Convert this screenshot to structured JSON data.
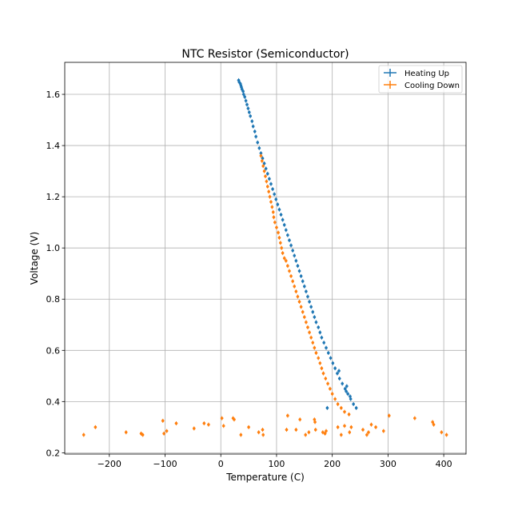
{
  "chart_data": {
    "type": "scatter",
    "title": "NTC Resistor (Semiconductor)",
    "xlabel": "Temperature (C)",
    "ylabel": "Voltage (V)",
    "xlim": [
      -280,
      440
    ],
    "ylim": [
      0.195,
      1.725
    ],
    "xticks": [
      -200,
      -100,
      0,
      100,
      200,
      300,
      400
    ],
    "xtick_labels": [
      "−200",
      "−100",
      "0",
      "100",
      "200",
      "300",
      "400"
    ],
    "yticks": [
      0.2,
      0.4,
      0.6,
      0.8,
      1.0,
      1.2,
      1.4,
      1.6
    ],
    "ytick_labels": [
      "0.2",
      "0.4",
      "0.6",
      "0.8",
      "1.0",
      "1.2",
      "1.4",
      "1.6"
    ],
    "grid": true,
    "legend": "top-right",
    "series": [
      {
        "name": "Heating Up",
        "color": "#1f77b4",
        "marker": "point-with-errorbar",
        "points": [
          [
            32,
            1.655
          ],
          [
            33,
            1.648
          ],
          [
            35,
            1.642
          ],
          [
            36,
            1.635
          ],
          [
            37,
            1.628
          ],
          [
            38,
            1.62
          ],
          [
            40,
            1.612
          ],
          [
            41,
            1.6
          ],
          [
            43,
            1.59
          ],
          [
            45,
            1.575
          ],
          [
            47,
            1.56
          ],
          [
            49,
            1.545
          ],
          [
            51,
            1.53
          ],
          [
            53,
            1.515
          ],
          [
            56,
            1.495
          ],
          [
            58,
            1.475
          ],
          [
            61,
            1.455
          ],
          [
            63,
            1.435
          ],
          [
            66,
            1.412
          ],
          [
            69,
            1.39
          ],
          [
            72,
            1.37
          ],
          [
            75,
            1.35
          ],
          [
            78,
            1.33
          ],
          [
            81,
            1.31
          ],
          [
            84,
            1.29
          ],
          [
            87,
            1.27
          ],
          [
            90,
            1.25
          ],
          [
            93,
            1.23
          ],
          [
            96,
            1.21
          ],
          [
            99,
            1.19
          ],
          [
            102,
            1.17
          ],
          [
            105,
            1.15
          ],
          [
            108,
            1.13
          ],
          [
            111,
            1.11
          ],
          [
            114,
            1.09
          ],
          [
            117,
            1.07
          ],
          [
            120,
            1.05
          ],
          [
            123,
            1.03
          ],
          [
            126,
            1.01
          ],
          [
            129,
            0.99
          ],
          [
            132,
            0.97
          ],
          [
            135,
            0.95
          ],
          [
            138,
            0.93
          ],
          [
            141,
            0.91
          ],
          [
            144,
            0.89
          ],
          [
            147,
            0.87
          ],
          [
            150,
            0.85
          ],
          [
            153,
            0.83
          ],
          [
            156,
            0.81
          ],
          [
            159,
            0.79
          ],
          [
            162,
            0.77
          ],
          [
            165,
            0.75
          ],
          [
            168,
            0.73
          ],
          [
            171,
            0.71
          ],
          [
            175,
            0.69
          ],
          [
            178,
            0.67
          ],
          [
            181,
            0.65
          ],
          [
            185,
            0.63
          ],
          [
            189,
            0.61
          ],
          [
            193,
            0.59
          ],
          [
            197,
            0.57
          ],
          [
            201,
            0.55
          ],
          [
            205,
            0.53
          ],
          [
            209,
            0.51
          ],
          [
            213,
            0.49
          ],
          [
            218,
            0.47
          ],
          [
            223,
            0.45
          ],
          [
            228,
            0.43
          ],
          [
            233,
            0.41
          ],
          [
            238,
            0.39
          ],
          [
            243,
            0.375
          ],
          [
            226,
            0.46
          ],
          [
            225,
            0.44
          ],
          [
            232,
            0.42
          ],
          [
            212,
            0.52
          ],
          [
            191,
            0.375
          ]
        ]
      },
      {
        "name": "Cooling Down",
        "color": "#ff7f0e",
        "marker": "point-with-errorbar",
        "points": [
          [
            72,
            1.36
          ],
          [
            74,
            1.34
          ],
          [
            76,
            1.32
          ],
          [
            78,
            1.3
          ],
          [
            80,
            1.28
          ],
          [
            82,
            1.26
          ],
          [
            84,
            1.24
          ],
          [
            86,
            1.22
          ],
          [
            88,
            1.2
          ],
          [
            90,
            1.18
          ],
          [
            92,
            1.16
          ],
          [
            94,
            1.14
          ],
          [
            95,
            1.12
          ],
          [
            97,
            1.1
          ],
          [
            100,
            1.08
          ],
          [
            103,
            1.06
          ],
          [
            105,
            1.04
          ],
          [
            107,
            1.02
          ],
          [
            109,
            1.0
          ],
          [
            111,
            0.98
          ],
          [
            114,
            0.96
          ],
          [
            117,
            0.95
          ],
          [
            120,
            0.93
          ],
          [
            123,
            0.91
          ],
          [
            126,
            0.89
          ],
          [
            129,
            0.87
          ],
          [
            132,
            0.85
          ],
          [
            135,
            0.83
          ],
          [
            138,
            0.81
          ],
          [
            141,
            0.79
          ],
          [
            144,
            0.77
          ],
          [
            147,
            0.75
          ],
          [
            150,
            0.73
          ],
          [
            153,
            0.71
          ],
          [
            156,
            0.69
          ],
          [
            159,
            0.67
          ],
          [
            162,
            0.65
          ],
          [
            165,
            0.63
          ],
          [
            168,
            0.61
          ],
          [
            171,
            0.59
          ],
          [
            175,
            0.57
          ],
          [
            178,
            0.55
          ],
          [
            181,
            0.53
          ],
          [
            184,
            0.51
          ],
          [
            188,
            0.49
          ],
          [
            192,
            0.47
          ],
          [
            196,
            0.45
          ],
          [
            200,
            0.43
          ],
          [
            205,
            0.41
          ],
          [
            210,
            0.39
          ],
          [
            216,
            0.375
          ],
          [
            222,
            0.36
          ],
          [
            230,
            0.35
          ],
          [
            -246,
            0.27
          ],
          [
            -225,
            0.3
          ],
          [
            -170,
            0.28
          ],
          [
            -143,
            0.275
          ],
          [
            -140,
            0.27
          ],
          [
            -104,
            0.325
          ],
          [
            -102,
            0.275
          ],
          [
            -97,
            0.285
          ],
          [
            -80,
            0.315
          ],
          [
            -48,
            0.295
          ],
          [
            -30,
            0.315
          ],
          [
            -22,
            0.31
          ],
          [
            2,
            0.335
          ],
          [
            5,
            0.305
          ],
          [
            22,
            0.335
          ],
          [
            24,
            0.33
          ],
          [
            36,
            0.27
          ],
          [
            50,
            0.3
          ],
          [
            68,
            0.28
          ],
          [
            75,
            0.29
          ],
          [
            76,
            0.27
          ],
          [
            118,
            0.29
          ],
          [
            120,
            0.345
          ],
          [
            135,
            0.29
          ],
          [
            142,
            0.33
          ],
          [
            152,
            0.27
          ],
          [
            158,
            0.28
          ],
          [
            168,
            0.33
          ],
          [
            169,
            0.32
          ],
          [
            170,
            0.29
          ],
          [
            183,
            0.28
          ],
          [
            187,
            0.275
          ],
          [
            189,
            0.285
          ],
          [
            210,
            0.3
          ],
          [
            216,
            0.27
          ],
          [
            222,
            0.305
          ],
          [
            231,
            0.28
          ],
          [
            234,
            0.3
          ],
          [
            255,
            0.29
          ],
          [
            262,
            0.27
          ],
          [
            265,
            0.28
          ],
          [
            270,
            0.31
          ],
          [
            278,
            0.3
          ],
          [
            292,
            0.285
          ],
          [
            302,
            0.345
          ],
          [
            348,
            0.335
          ],
          [
            380,
            0.32
          ],
          [
            382,
            0.31
          ],
          [
            396,
            0.28
          ],
          [
            405,
            0.27
          ]
        ]
      }
    ]
  }
}
